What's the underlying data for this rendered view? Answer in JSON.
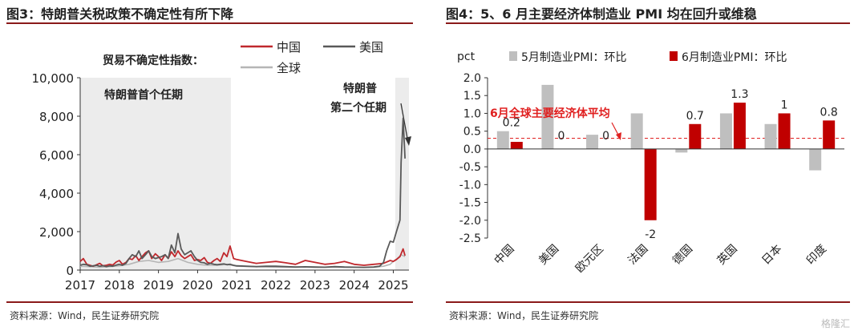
{
  "source_note": "资料来源：Wind，民生证券研究院",
  "watermark": "格隆汇",
  "chart_data": [
    {
      "type": "line",
      "title": "图3：特朗普关税政策不确定性有所下降",
      "subtitle": "贸易不确定性指数：",
      "ylim": [
        0,
        10000
      ],
      "yticks": [
        "0",
        "2,000",
        "4,000",
        "6,000",
        "8,000",
        "10,000"
      ],
      "ytick_values": [
        0,
        2000,
        4000,
        6000,
        8000,
        10000
      ],
      "xlim": [
        2017,
        2025.4
      ],
      "xticks": [
        "2017",
        "2018",
        "2019",
        "2020",
        "2021",
        "2022",
        "2023",
        "2024",
        "2025"
      ],
      "xtick_values": [
        2017,
        2018,
        2019,
        2020,
        2021,
        2022,
        2023,
        2024,
        2025
      ],
      "legend_position": "top-right",
      "annotations": [
        {
          "text": "特朗普首个任期",
          "x_start": 2017,
          "x_end": 2020.85
        },
        {
          "text_line1": "特朗普",
          "text_line2": "第二个任期",
          "x_start": 2025.05,
          "x_end": 2025.4
        }
      ],
      "series": [
        {
          "name": "中国",
          "color": "#c0282d",
          "x": [
            2017.0,
            2017.08,
            2017.17,
            2017.25,
            2017.33,
            2017.42,
            2017.5,
            2017.58,
            2017.67,
            2017.75,
            2017.83,
            2017.92,
            2018.0,
            2018.08,
            2018.17,
            2018.25,
            2018.33,
            2018.42,
            2018.5,
            2018.58,
            2018.67,
            2018.75,
            2018.83,
            2018.92,
            2019.0,
            2019.08,
            2019.17,
            2019.25,
            2019.33,
            2019.42,
            2019.5,
            2019.58,
            2019.67,
            2019.75,
            2019.83,
            2019.92,
            2020.0,
            2020.08,
            2020.17,
            2020.25,
            2020.33,
            2020.42,
            2020.5,
            2020.58,
            2020.67,
            2020.75,
            2020.83,
            2020.92,
            2021.0,
            2021.25,
            2021.5,
            2021.75,
            2022.0,
            2022.25,
            2022.5,
            2022.75,
            2023.0,
            2023.25,
            2023.5,
            2023.75,
            2024.0,
            2024.25,
            2024.5,
            2024.75,
            2024.92,
            2025.0,
            2025.08,
            2025.17,
            2025.25,
            2025.3
          ],
          "y": [
            450,
            600,
            300,
            250,
            200,
            280,
            350,
            220,
            250,
            300,
            260,
            420,
            500,
            300,
            400,
            600,
            550,
            750,
            500,
            700,
            900,
            1000,
            600,
            850,
            700,
            500,
            800,
            600,
            950,
            700,
            1000,
            750,
            600,
            700,
            800,
            500,
            550,
            500,
            650,
            400,
            350,
            500,
            600,
            450,
            900,
            700,
            1250,
            600,
            550,
            450,
            350,
            400,
            450,
            380,
            300,
            500,
            400,
            300,
            350,
            450,
            300,
            250,
            300,
            350,
            500,
            450,
            550,
            700,
            1100,
            750
          ]
        },
        {
          "name": "美国",
          "color": "#595959",
          "x": [
            2017.0,
            2017.08,
            2017.17,
            2017.25,
            2017.33,
            2017.42,
            2017.5,
            2017.58,
            2017.67,
            2017.75,
            2017.83,
            2017.92,
            2018.0,
            2018.08,
            2018.17,
            2018.25,
            2018.33,
            2018.42,
            2018.5,
            2018.58,
            2018.67,
            2018.75,
            2018.83,
            2018.92,
            2019.0,
            2019.08,
            2019.17,
            2019.25,
            2019.33,
            2019.42,
            2019.5,
            2019.58,
            2019.67,
            2019.75,
            2019.83,
            2019.92,
            2020.0,
            2020.08,
            2020.17,
            2020.25,
            2020.33,
            2020.42,
            2020.5,
            2020.58,
            2020.67,
            2020.75,
            2020.83,
            2020.92,
            2021.0,
            2021.25,
            2021.5,
            2021.75,
            2022.0,
            2022.25,
            2022.5,
            2022.75,
            2023.0,
            2023.25,
            2023.5,
            2023.75,
            2024.0,
            2024.25,
            2024.5,
            2024.65,
            2024.75,
            2024.83,
            2024.92,
            2025.0,
            2025.08,
            2025.17,
            2025.2,
            2025.25,
            2025.3
          ],
          "y": [
            250,
            300,
            280,
            200,
            220,
            250,
            200,
            230,
            180,
            220,
            200,
            260,
            300,
            250,
            350,
            600,
            800,
            700,
            1000,
            600,
            800,
            1000,
            700,
            600,
            650,
            700,
            800,
            600,
            1300,
            900,
            1900,
            1100,
            800,
            900,
            1000,
            700,
            500,
            400,
            380,
            300,
            350,
            300,
            280,
            300,
            320,
            280,
            300,
            250,
            220,
            200,
            180,
            200,
            200,
            180,
            160,
            170,
            160,
            150,
            180,
            160,
            150,
            140,
            160,
            200,
            400,
            1000,
            1500,
            1450,
            2000,
            2600,
            5600,
            7900,
            5800
          ]
        },
        {
          "name": "全球",
          "color": "#b5b5b5",
          "x": [
            2017.0,
            2017.25,
            2017.5,
            2017.75,
            2018.0,
            2018.25,
            2018.5,
            2018.75,
            2019.0,
            2019.25,
            2019.5,
            2019.75,
            2020.0,
            2020.25,
            2020.5,
            2020.75,
            2021.0,
            2021.5,
            2022.0,
            2022.5,
            2023.0,
            2023.5,
            2024.0,
            2024.5,
            2024.75,
            2024.92,
            2025.0,
            2025.1,
            2025.2,
            2025.3
          ],
          "y": [
            200,
            180,
            150,
            180,
            220,
            300,
            450,
            500,
            400,
            450,
            600,
            400,
            300,
            250,
            250,
            300,
            200,
            180,
            150,
            160,
            140,
            150,
            140,
            150,
            200,
            300,
            450,
            600,
            800,
            700
          ]
        }
      ]
    },
    {
      "type": "bar",
      "title": "图4：5、6 月主要经济体制造业 PMI 均在回升或维稳",
      "ylabel": "pct",
      "ylim": [
        -2.5,
        2.0
      ],
      "yticks": [
        "-2.5",
        "-2.0",
        "-1.5",
        "-1.0",
        "-0.5",
        "0.0",
        "0.5",
        "1.0",
        "1.5",
        "2.0"
      ],
      "ytick_values": [
        -2.5,
        -2.0,
        -1.5,
        -1.0,
        -0.5,
        0.0,
        0.5,
        1.0,
        1.5,
        2.0
      ],
      "categories": [
        "中国",
        "美国",
        "欧元区",
        "法国",
        "德国",
        "英国",
        "日本",
        "印度"
      ],
      "legend_position": "top",
      "series": [
        {
          "name": "5月制造业PMI：环比",
          "color": "#bfbfbf",
          "values": [
            0.5,
            1.8,
            0.4,
            1.0,
            -0.1,
            1.0,
            0.7,
            -0.6
          ]
        },
        {
          "name": "6月制造业PMI：环比",
          "color": "#c00000",
          "values": [
            0.2,
            0,
            0,
            -2,
            0.7,
            1.3,
            1,
            0.8
          ]
        }
      ],
      "data_labels": [
        "0.2",
        "0",
        "0",
        "-2",
        "0.7",
        "1.3",
        "1",
        "0.8"
      ],
      "reference_line": {
        "label": "6月全球主要经济体平均",
        "value": 0.3,
        "color": "#e02020"
      }
    }
  ]
}
